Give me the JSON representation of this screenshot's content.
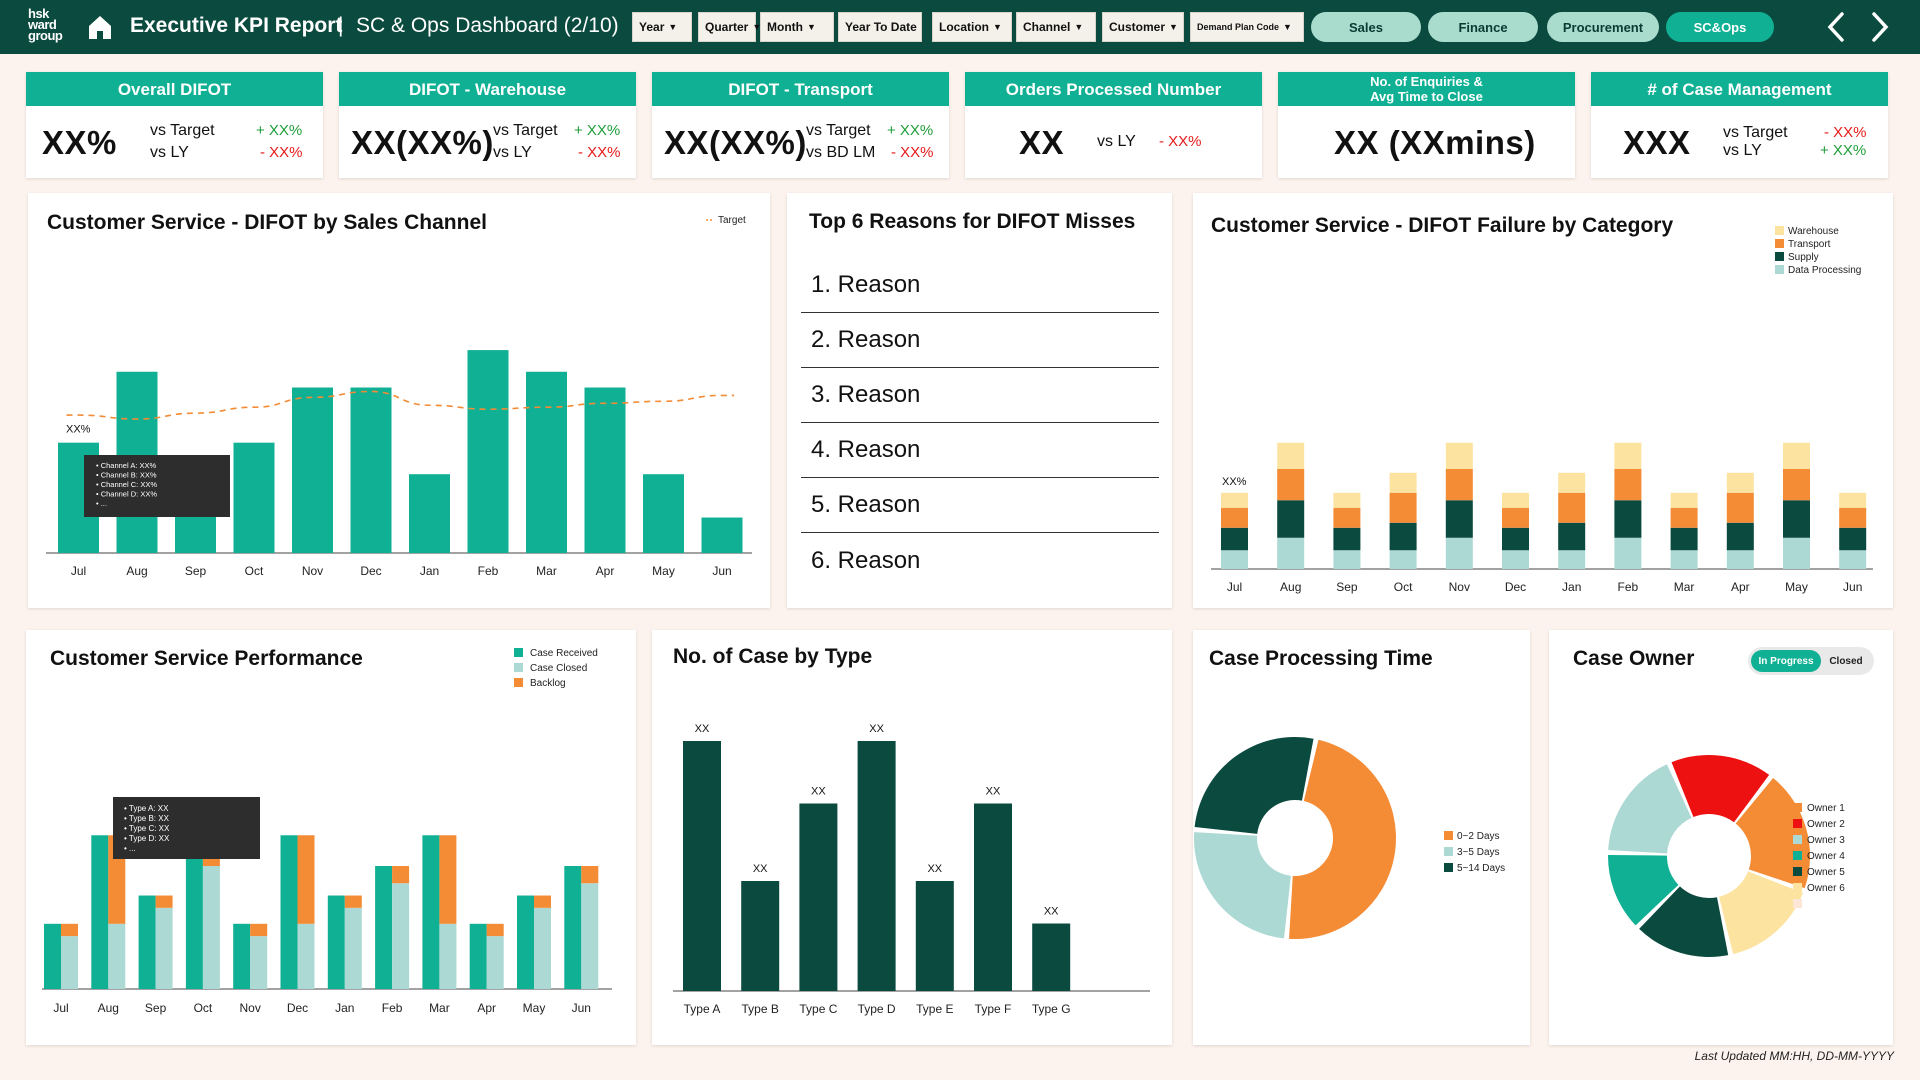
{
  "header": {
    "logo_lines": [
      "hsk",
      "ward",
      "group"
    ],
    "title": "Executive KPI Report",
    "separator": "|",
    "subtitle": "SC & Ops Dashboard (2/10)",
    "filters": [
      {
        "label": "Year",
        "caret": true
      },
      {
        "label": "Quarter",
        "caret": true
      },
      {
        "label": "Month",
        "caret": true
      },
      {
        "label": "Year To Date",
        "caret": false
      },
      {
        "label": "Location",
        "caret": true
      },
      {
        "label": "Channel",
        "caret": true
      },
      {
        "label": "Customer",
        "caret": true
      },
      {
        "label": "Demand Plan Code",
        "caret": true
      }
    ],
    "nav": [
      {
        "label": "Sales",
        "active": false
      },
      {
        "label": "Finance",
        "active": false
      },
      {
        "label": "Procurement",
        "active": false
      },
      {
        "label": "SC&Ops",
        "active": true
      }
    ]
  },
  "kpis": {
    "overall_difot": {
      "title": "Overall DIFOT",
      "value": "XX%",
      "label1": "vs Target",
      "label2": "vs LY",
      "delta1": "+ XX%",
      "delta2": "- XX%"
    },
    "difot_warehouse": {
      "title": "DIFOT - Warehouse",
      "value": "XX(XX%)",
      "label1": "vs Target",
      "label2": "vs LY",
      "delta1": "+ XX%",
      "delta2": "- XX%"
    },
    "difot_transport": {
      "title": "DIFOT - Transport",
      "value": "XX(XX%)",
      "label1": "vs Target",
      "label2": "vs BD LM",
      "delta1": "+ XX%",
      "delta2": "- XX%"
    },
    "orders_processed": {
      "title": "Orders Processed Number",
      "value": "XX",
      "label1": "vs LY",
      "delta1": "- XX%"
    },
    "enquiries": {
      "title_line1": "No. of Enquiries &",
      "title_line2": "Avg Time to Close",
      "value": "XX (XXmins)"
    },
    "case_mgmt": {
      "title": "# of Case Management",
      "value": "XXX",
      "label1": "vs Target",
      "label2": "vs LY",
      "delta1": "- XX%",
      "delta2": "+ XX%"
    }
  },
  "colors": {
    "teal": "#10b094",
    "dark_green": "#0b4a3f",
    "orange": "#f48b35",
    "yellow": "#fde3a0",
    "light_teal": "#acd9d4",
    "red": "#ee1111",
    "peach": "#fde6d6"
  },
  "months": [
    "Jul",
    "Aug",
    "Sep",
    "Oct",
    "Nov",
    "Dec",
    "Jan",
    "Feb",
    "Mar",
    "Apr",
    "May",
    "Jun"
  ],
  "chart_data": [
    {
      "id": "difot_sales_channel",
      "type": "bar",
      "title": "Customer Service - DIFOT by Sales Channel",
      "categories": [
        "Jul",
        "Aug",
        "Sep",
        "Oct",
        "Nov",
        "Dec",
        "Jan",
        "Feb",
        "Mar",
        "Apr",
        "May",
        "Jun"
      ],
      "values": [
        56,
        92,
        26,
        56,
        84,
        84,
        40,
        103,
        92,
        84,
        40,
        18
      ],
      "target": [
        70,
        68,
        71,
        74,
        79,
        82,
        75,
        73,
        74,
        76,
        77,
        80
      ],
      "legend": [
        "Target"
      ],
      "data_label": {
        "index": 0,
        "text": "XX%"
      },
      "tooltip": [
        "Channel A: XX%",
        "Channel B: XX%",
        "Channel C: XX%",
        "Channel D: XX%",
        "..."
      ]
    },
    {
      "id": "difot_failure_category",
      "type": "bar",
      "stacked": true,
      "title": "Customer Service - DIFOT Failure by Category",
      "categories": [
        "Jul",
        "Aug",
        "Sep",
        "Oct",
        "Nov",
        "Dec",
        "Jan",
        "Feb",
        "Mar",
        "Apr",
        "May",
        "Jun"
      ],
      "series": [
        {
          "name": "Data Processing",
          "values": [
            15,
            25,
            15,
            15,
            25,
            15,
            15,
            25,
            15,
            15,
            25,
            15
          ]
        },
        {
          "name": "Supply",
          "values": [
            18,
            30,
            18,
            22,
            30,
            18,
            22,
            30,
            18,
            22,
            30,
            18
          ]
        },
        {
          "name": "Transport",
          "values": [
            16,
            25,
            16,
            24,
            25,
            16,
            24,
            25,
            16,
            24,
            25,
            16
          ]
        },
        {
          "name": "Warehouse",
          "values": [
            12,
            21,
            12,
            16,
            21,
            12,
            16,
            21,
            12,
            16,
            21,
            12
          ]
        }
      ],
      "data_label": {
        "index": 0,
        "text": "XX%"
      }
    },
    {
      "id": "cs_performance",
      "type": "bar",
      "stacked": true,
      "title": "Customer Service Performance",
      "categories": [
        "Jul",
        "Aug",
        "Sep",
        "Oct",
        "Nov",
        "Dec",
        "Jan",
        "Feb",
        "Mar",
        "Apr",
        "May",
        "Jun"
      ],
      "series": [
        {
          "name": "Case Received",
          "values": [
            53,
            125,
            76,
            125,
            53,
            125,
            76,
            100,
            125,
            53,
            76,
            100
          ]
        },
        {
          "name": "Case Closed",
          "values": [
            43,
            53,
            66,
            100,
            43,
            53,
            66,
            86,
            53,
            43,
            66,
            86
          ]
        },
        {
          "name": "Backlog",
          "values": [
            10,
            72,
            10,
            25,
            10,
            72,
            10,
            14,
            72,
            10,
            10,
            14
          ]
        }
      ],
      "tooltip": [
        "Type A: XX",
        "Type B: XX",
        "Type C: XX",
        "Type D: XX",
        "..."
      ]
    },
    {
      "id": "case_by_type",
      "type": "bar",
      "title": "No. of Case by Type",
      "categories": [
        "Type A",
        "Type B",
        "Type C",
        "Type D",
        "Type E",
        "Type F",
        "Type G"
      ],
      "values": [
        100,
        44,
        75,
        100,
        44,
        75,
        27
      ],
      "data_labels": [
        "XX",
        "XX",
        "XX",
        "XX",
        "XX",
        "XX",
        "XX"
      ]
    },
    {
      "id": "case_processing_time",
      "type": "pie",
      "donut": true,
      "title": "Case Processing Time",
      "categories": [
        "0~2 Days",
        "3~5 Days",
        "5~14 Days"
      ],
      "values": [
        48,
        25,
        27
      ]
    },
    {
      "id": "case_owner",
      "type": "pie",
      "donut": true,
      "title": "Case Owner",
      "categories": [
        "Owner 1",
        "Owner 2",
        "Owner 3",
        "Owner 4",
        "Owner 5",
        "Owner 6"
      ],
      "values": [
        20,
        16,
        16,
        13,
        18,
        17
      ],
      "toggle": [
        "In Progress",
        "Closed"
      ]
    }
  ],
  "reasons": {
    "title": "Top 6 Reasons for DIFOT Misses",
    "items": [
      "1. Reason",
      "2. Reason",
      "3. Reason",
      "4. Reason",
      "5. Reason",
      "6. Reason"
    ]
  },
  "footer": "Last Updated MM:HH, DD-MM-YYYY"
}
